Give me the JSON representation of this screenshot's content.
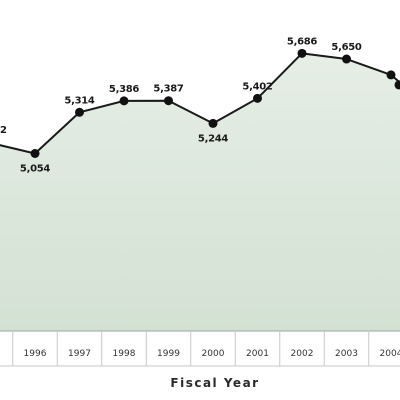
{
  "chart_data": {
    "type": "area",
    "xlabel": "Fiscal Year",
    "ylabel": "",
    "title": "",
    "categories": [
      "1996",
      "1997",
      "1998",
      "1999",
      "2000",
      "2001",
      "2002",
      "2003",
      "2004"
    ],
    "values": [
      5054,
      5314,
      5386,
      5387,
      5244,
      5402,
      5686,
      5650,
      5550
    ],
    "labels": [
      "5,054",
      "5,314",
      "5,386",
      "5,387",
      "5,244",
      "5,402",
      "5,686",
      "5,650",
      ""
    ],
    "leading_partial_label": "2",
    "leading_partial_value": 5120,
    "grid": false,
    "colors": {
      "area_top": "#e4ece4",
      "area_bottom": "#d2e0d2",
      "line": "#1a1a1a",
      "marker": "#111111",
      "axis_band": "#ffffff",
      "divider": "#c9c9c9"
    }
  }
}
